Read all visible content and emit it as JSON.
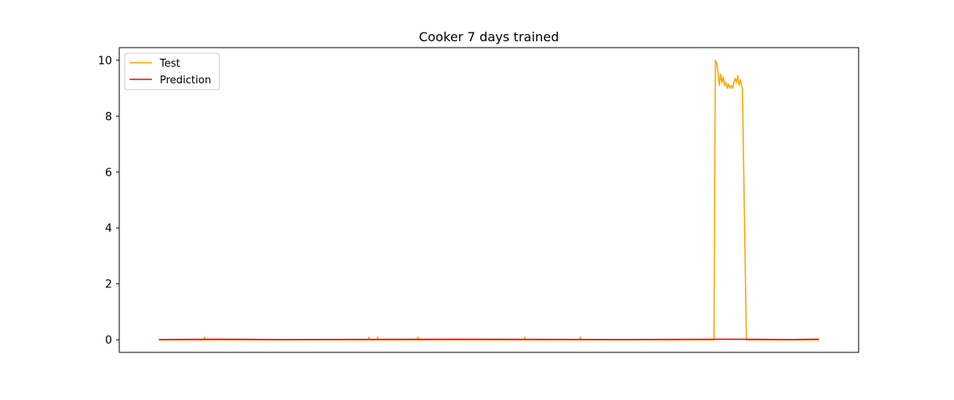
{
  "chart_data": {
    "type": "line",
    "title": "Cooker 7 days trained",
    "xlabel": "",
    "ylabel": "",
    "x_ticks_visible": false,
    "xlim": [
      -60,
      1060
    ],
    "ylim": [
      -0.45,
      10.45
    ],
    "yticks": [
      0,
      2,
      4,
      6,
      8,
      10
    ],
    "grid": false,
    "legend": {
      "placement": "top-left",
      "entries": [
        "Test",
        "Prediction"
      ]
    },
    "series": [
      {
        "name": "Test",
        "color": "#ffa500",
        "points": [
          [
            0,
            0
          ],
          [
            69,
            0
          ],
          [
            69.5,
            0.1
          ],
          [
            70,
            0
          ],
          [
            318,
            0
          ],
          [
            318.5,
            0.1
          ],
          [
            319,
            0
          ],
          [
            331,
            0
          ],
          [
            331.5,
            0.1
          ],
          [
            332,
            0
          ],
          [
            392,
            0
          ],
          [
            392.5,
            0.1
          ],
          [
            393,
            0
          ],
          [
            554,
            0
          ],
          [
            554.5,
            0.1
          ],
          [
            555,
            0
          ],
          [
            638,
            0
          ],
          [
            638.5,
            0.1
          ],
          [
            639,
            0
          ],
          [
            841,
            0
          ],
          [
            843,
            10.0
          ],
          [
            845,
            9.9
          ],
          [
            847,
            9.6
          ],
          [
            849,
            9.1
          ],
          [
            851,
            9.5
          ],
          [
            853,
            9.2
          ],
          [
            855,
            9.4
          ],
          [
            857,
            9.1
          ],
          [
            859,
            9.2
          ],
          [
            861,
            9.0
          ],
          [
            863,
            9.15
          ],
          [
            865,
            9.0
          ],
          [
            867,
            9.1
          ],
          [
            869,
            9.0
          ],
          [
            871,
            9.2
          ],
          [
            873,
            9.35
          ],
          [
            875,
            9.2
          ],
          [
            877,
            9.45
          ],
          [
            879,
            9.1
          ],
          [
            881,
            9.3
          ],
          [
            883,
            9.05
          ],
          [
            884,
            9.0
          ],
          [
            890,
            0
          ],
          [
            1000,
            0
          ]
        ]
      },
      {
        "name": "Prediction",
        "color": "#ff0000",
        "points": [
          [
            0,
            0.01
          ],
          [
            90,
            0.02
          ],
          [
            180,
            0.01
          ],
          [
            450,
            0.02
          ],
          [
            700,
            0.01
          ],
          [
            860,
            0.02
          ],
          [
            960,
            0.01
          ],
          [
            1000,
            0.02
          ]
        ]
      }
    ]
  }
}
